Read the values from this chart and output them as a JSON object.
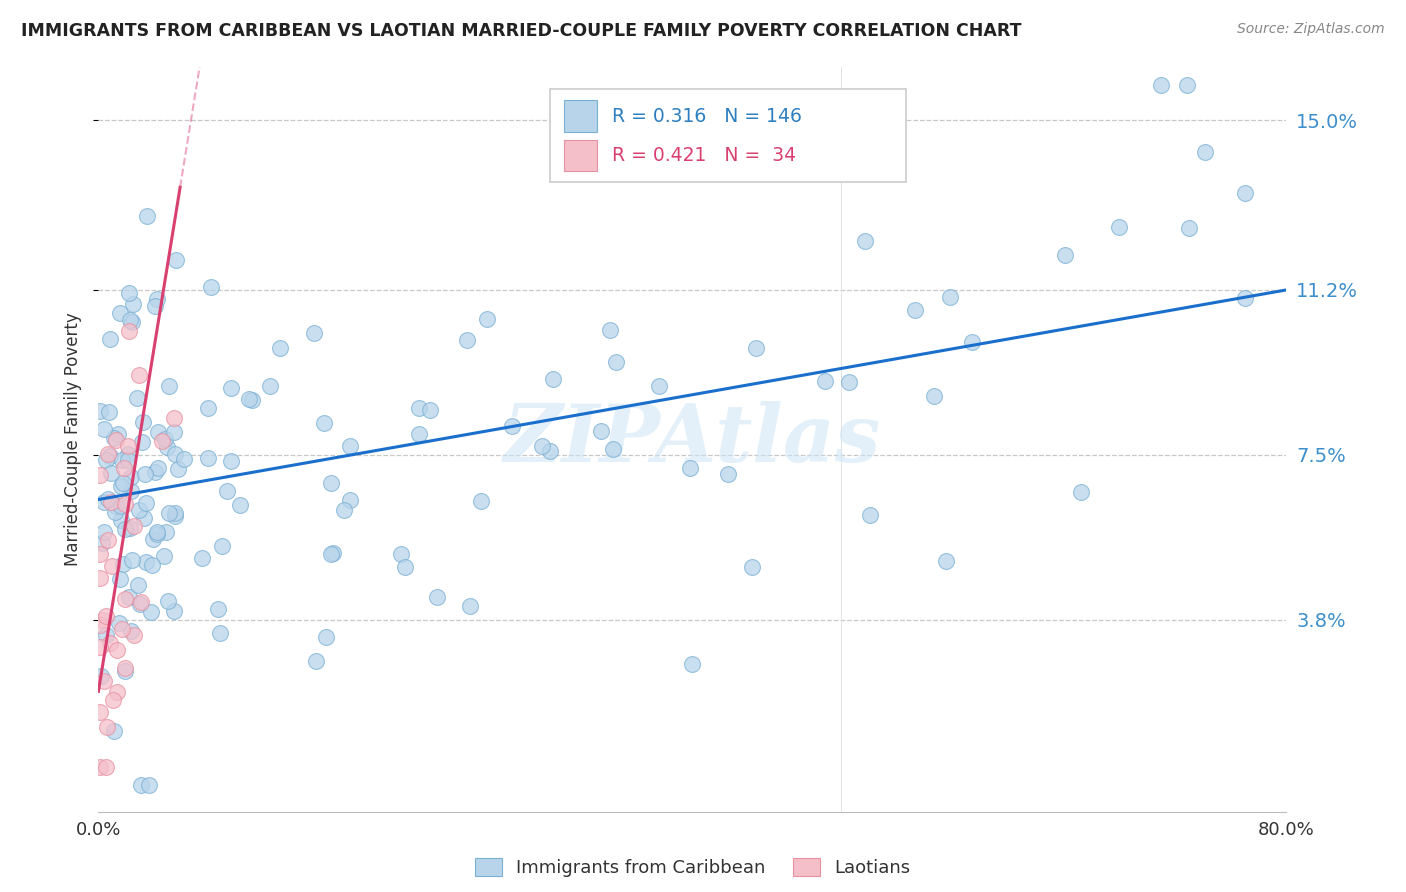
{
  "title": "IMMIGRANTS FROM CARIBBEAN VS LAOTIAN MARRIED-COUPLE FAMILY POVERTY CORRELATION CHART",
  "source": "Source: ZipAtlas.com",
  "ylabel": "Married-Couple Family Poverty",
  "xmin": 0.0,
  "xmax": 0.8,
  "ymin": -0.005,
  "ymax": 0.162,
  "caribbean_R": 0.316,
  "caribbean_N": 146,
  "laotian_R": 0.421,
  "laotian_N": 34,
  "caribbean_color": "#b8d4ea",
  "caribbean_edge": "#7ab0d4",
  "laotian_color": "#f5bfca",
  "laotian_edge": "#e8909f",
  "trend_caribbean_color": "#1a6fcc",
  "trend_laotian_color": "#d94070",
  "watermark": "ZIPAtlas",
  "ytick_vals": [
    0.038,
    0.075,
    0.112,
    0.15
  ],
  "ytick_labels": [
    "3.8%",
    "7.5%",
    "11.2%",
    "15.0%"
  ],
  "trend_carib_x0": 0.0,
  "trend_carib_y0": 0.065,
  "trend_carib_x1": 0.8,
  "trend_carib_y1": 0.112,
  "trend_laot_x0": 0.0,
  "trend_laot_y0": 0.022,
  "trend_laot_x1": 0.055,
  "trend_laot_y1": 0.135
}
